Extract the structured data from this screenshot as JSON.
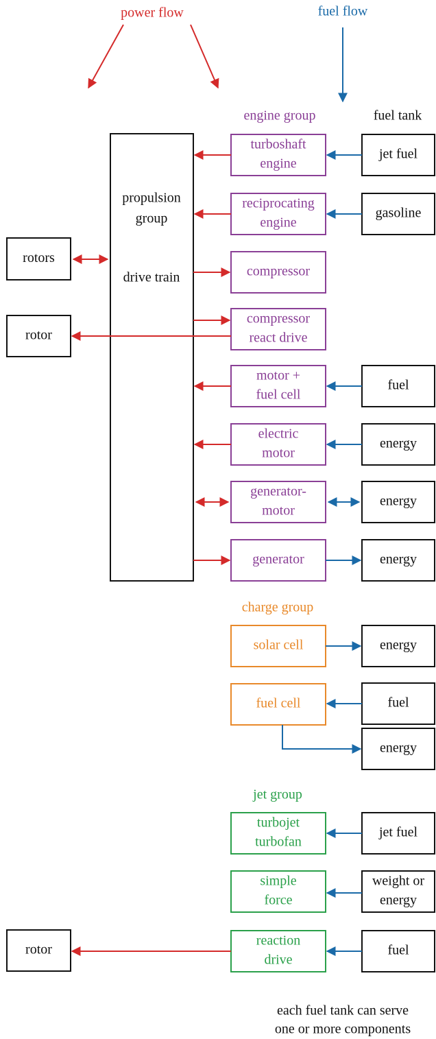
{
  "flow_labels": {
    "power": "power flow",
    "fuel": "fuel flow"
  },
  "engine_group": {
    "title": "engine group",
    "components": [
      [
        "turboshaft",
        "engine"
      ],
      [
        "reciprocating",
        "engine"
      ],
      [
        "compressor"
      ],
      [
        "compressor",
        "react drive"
      ],
      [
        "motor +",
        "fuel cell"
      ],
      [
        "electric",
        "motor"
      ],
      [
        "generator-",
        "motor"
      ],
      [
        "generator"
      ]
    ],
    "tanks": [
      [
        "jet fuel"
      ],
      [
        "gasoline"
      ],
      [
        "fuel"
      ],
      [
        "energy"
      ],
      [
        "energy"
      ],
      [
        "energy"
      ]
    ]
  },
  "fuel_tank_title": "fuel tank",
  "propulsion": {
    "lines": [
      "propulsion",
      "group"
    ],
    "drive_train": "drive train"
  },
  "rotors": [
    [
      "rotors"
    ],
    [
      "rotor"
    ],
    [
      "rotor"
    ]
  ],
  "charge_group": {
    "title": "charge group",
    "components": [
      [
        "solar cell"
      ],
      [
        "fuel cell"
      ]
    ],
    "tanks": [
      [
        "energy"
      ],
      [
        "fuel"
      ],
      [
        "energy"
      ]
    ]
  },
  "jet_group": {
    "title": "jet group",
    "components": [
      [
        "turbojet",
        "turbofan"
      ],
      [
        "simple",
        "force"
      ],
      [
        "reaction",
        "drive"
      ]
    ],
    "tanks": [
      [
        "jet fuel"
      ],
      [
        "weight or",
        "energy"
      ],
      [
        "fuel"
      ]
    ]
  },
  "footnote": [
    "each fuel tank can serve",
    "one or more components"
  ]
}
